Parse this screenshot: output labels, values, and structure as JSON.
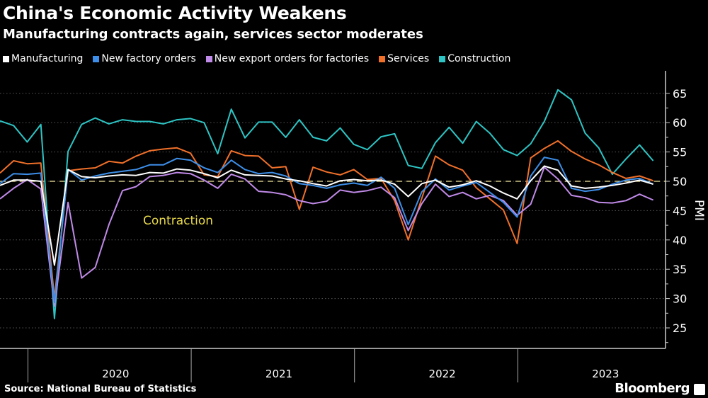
{
  "chart_data": {
    "type": "line",
    "title": "China's Economic Activity Weakens",
    "subtitle": "Manufacturing contracts again, services sector moderates",
    "ylabel": "PMI",
    "ylim": [
      20,
      69
    ],
    "yticks": [
      "65",
      "60",
      "55",
      "50",
      "45",
      "40",
      "35",
      "30",
      "25"
    ],
    "xtick_labels": [
      "2020",
      "2021",
      "2022",
      "2023"
    ],
    "x_start": "2019-10",
    "x_end": "2023-10",
    "x_frequency": "monthly",
    "grid": true,
    "legend_position": "top",
    "reference_line": {
      "value": 50,
      "color": "#f5eba0"
    },
    "annotation": {
      "text": "Contraction",
      "color": "#e8d84a"
    },
    "series": [
      {
        "name": "Manufacturing",
        "color": "#ffffff",
        "values": [
          49.3,
          50.2,
          50.2,
          50.0,
          35.7,
          52.0,
          50.8,
          50.6,
          50.9,
          51.1,
          51.0,
          51.5,
          51.4,
          52.1,
          51.9,
          51.3,
          50.6,
          51.9,
          51.1,
          51.0,
          50.9,
          50.4,
          50.1,
          49.6,
          49.2,
          50.1,
          50.3,
          50.1,
          50.2,
          49.5,
          47.4,
          49.6,
          50.2,
          49.0,
          49.4,
          50.1,
          49.2,
          48.0,
          47.0,
          50.1,
          52.6,
          51.9,
          49.2,
          48.8,
          49.0,
          49.3,
          49.7,
          50.2,
          49.5
        ]
      },
      {
        "name": "New factory orders",
        "color": "#3d8ee8",
        "values": [
          49.6,
          51.3,
          51.2,
          51.4,
          29.3,
          52.0,
          50.2,
          50.9,
          51.4,
          51.7,
          52.0,
          52.8,
          52.8,
          53.9,
          53.6,
          52.3,
          51.5,
          53.6,
          52.0,
          51.3,
          51.5,
          50.9,
          49.6,
          49.3,
          48.8,
          49.4,
          49.7,
          49.3,
          50.7,
          48.8,
          42.6,
          48.2,
          50.4,
          48.5,
          49.2,
          49.8,
          48.1,
          46.4,
          43.9,
          50.9,
          54.1,
          53.6,
          48.8,
          48.3,
          48.6,
          49.5,
          50.2,
          50.5,
          49.5
        ]
      },
      {
        "name": "New export orders for factories",
        "color": "#c08ae8",
        "values": [
          47.0,
          48.8,
          50.3,
          48.7,
          28.7,
          46.4,
          33.5,
          35.3,
          42.6,
          48.4,
          49.1,
          50.8,
          51.0,
          51.5,
          51.3,
          50.2,
          48.8,
          51.2,
          50.4,
          48.3,
          48.1,
          47.7,
          46.7,
          46.2,
          46.6,
          48.5,
          48.1,
          48.4,
          49.0,
          47.2,
          41.6,
          46.2,
          49.5,
          47.4,
          48.1,
          47.0,
          47.6,
          46.7,
          44.2,
          46.1,
          52.4,
          50.4,
          47.6,
          47.2,
          46.4,
          46.3,
          46.7,
          47.8,
          46.8
        ]
      },
      {
        "name": "Services",
        "color": "#f0702a",
        "values": [
          51.4,
          53.5,
          53.0,
          53.1,
          30.1,
          51.8,
          52.1,
          52.3,
          53.4,
          53.1,
          54.3,
          55.2,
          55.5,
          55.7,
          54.8,
          51.1,
          50.8,
          55.2,
          54.4,
          54.3,
          52.3,
          52.5,
          45.2,
          52.4,
          51.6,
          51.1,
          52.0,
          50.3,
          50.5,
          46.7,
          40.0,
          47.1,
          54.3,
          52.8,
          51.9,
          48.9,
          47.0,
          45.1,
          39.4,
          54.0,
          55.6,
          56.9,
          55.1,
          53.8,
          52.8,
          51.5,
          50.5,
          50.9,
          50.1
        ]
      },
      {
        "name": "Construction",
        "color": "#2ec4c4",
        "values": [
          60.3,
          59.5,
          56.7,
          59.7,
          26.6,
          55.1,
          59.7,
          60.8,
          59.8,
          60.5,
          60.2,
          60.2,
          59.8,
          60.5,
          60.7,
          60.0,
          54.7,
          62.3,
          57.4,
          60.1,
          60.1,
          57.5,
          60.5,
          57.5,
          56.9,
          59.1,
          56.3,
          55.4,
          57.6,
          58.1,
          52.7,
          52.2,
          56.6,
          59.2,
          56.5,
          60.2,
          58.2,
          55.4,
          54.4,
          56.4,
          60.2,
          65.6,
          63.9,
          58.2,
          55.7,
          51.2,
          53.8,
          56.2,
          53.5
        ]
      }
    ]
  },
  "footer": {
    "source": "Source: National Bureau of Statistics",
    "brand": "Bloomberg"
  }
}
